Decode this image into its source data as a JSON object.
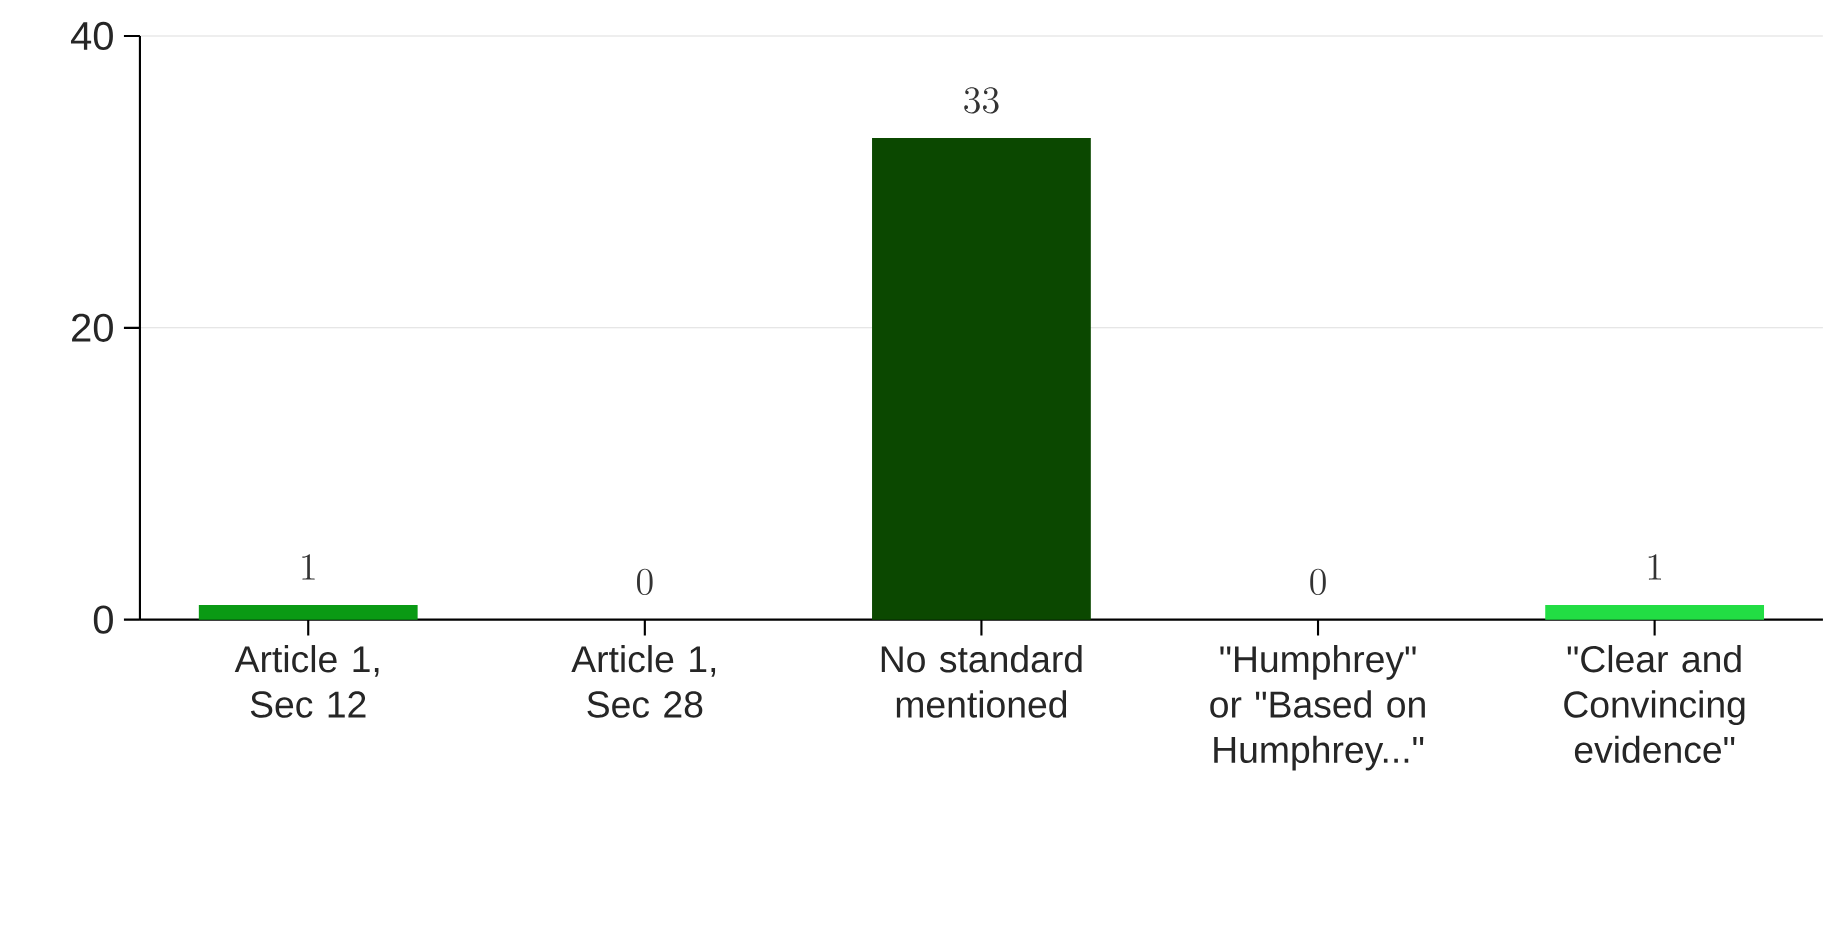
{
  "chart_data": {
    "type": "bar",
    "categories": [
      "Article 1, Sec 12",
      "Article 1, Sec 28",
      "No standard mentioned",
      "\"Humphrey\" or \"Based on Humphrey...\"",
      "\"Clear and Convincing evidence\""
    ],
    "values": [
      1,
      0,
      33,
      0,
      1
    ],
    "colors": [
      "#0a9a14",
      "#0a9a14",
      "#0b4800",
      "#0b4800",
      "#22dd44"
    ],
    "ylim": [
      0,
      40
    ],
    "yticks": [
      0,
      20,
      40
    ],
    "grid": "y",
    "data_labels": true
  }
}
